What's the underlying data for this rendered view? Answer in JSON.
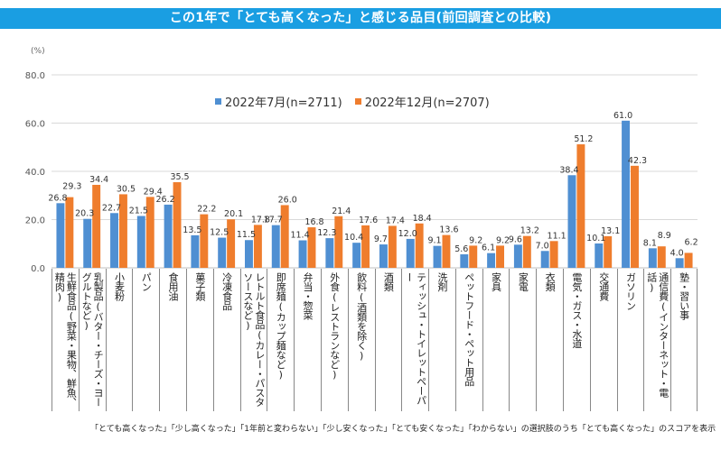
{
  "title": "この1年で「とても高くなった」と感じる品目(前回調査との比較)",
  "unit_label": "(%)",
  "footnote": "「とても高くなった」「少し高くなった」「1年前と変わらない」「少し安くなった」「とても安くなった」「わからない」の選択肢のうち「とても高くなった」のスコアを表示",
  "colors": {
    "title_bg": "#1a9ee2",
    "series1": "#4f8fd2",
    "series2": "#ef7d2d",
    "grid": "#d9d9d9"
  },
  "chart_data": {
    "type": "bar",
    "title": "この1年で「とても高くなった」と感じる品目(前回調査との比較)",
    "xlabel": "",
    "ylabel": "(%)",
    "ylim": [
      0,
      80
    ],
    "yticks": [
      0,
      20,
      40,
      60,
      80
    ],
    "ytick_labels": [
      "0.0",
      "20.0",
      "40.0",
      "60.0",
      "80.0"
    ],
    "grid": true,
    "legend_position": "top-center",
    "categories": [
      "生鮮食品(野菜・果物、鮮魚、精肉)",
      "乳製品(バター・チーズ・ヨーグルトなど)",
      "小麦粉",
      "パン",
      "食用油",
      "菓子類",
      "冷凍食品",
      "レトルト食品(カレー・パスタソースなど)",
      "即席麺(カップ麺など)",
      "弁当・惣菜",
      "外食(レストランなど)",
      "飲料(酒類を除く)",
      "酒類",
      "ティッシュ・トイレットペーパー",
      "洗剤",
      "ペットフード・ペット用品",
      "家具",
      "家電",
      "衣類",
      "電気・ガス・水道",
      "交通費",
      "ガソリン",
      "通信費(インターネット・電話)",
      "塾・習い事"
    ],
    "series": [
      {
        "name": "2022年7月(n=2711)",
        "values": [
          26.8,
          20.3,
          22.7,
          21.5,
          26.2,
          13.5,
          12.5,
          11.5,
          17.7,
          11.4,
          12.3,
          10.4,
          9.7,
          12.0,
          9.1,
          5.6,
          6.1,
          9.6,
          7.0,
          38.4,
          10.1,
          61.0,
          8.1,
          4.0
        ]
      },
      {
        "name": "2022年12月(n=2707)",
        "values": [
          29.3,
          34.4,
          30.5,
          29.4,
          35.5,
          22.2,
          20.1,
          17.8,
          26.0,
          16.8,
          21.4,
          17.6,
          17.4,
          18.4,
          13.6,
          9.2,
          9.2,
          13.2,
          11.1,
          51.2,
          13.1,
          42.3,
          8.9,
          6.2
        ]
      }
    ]
  }
}
